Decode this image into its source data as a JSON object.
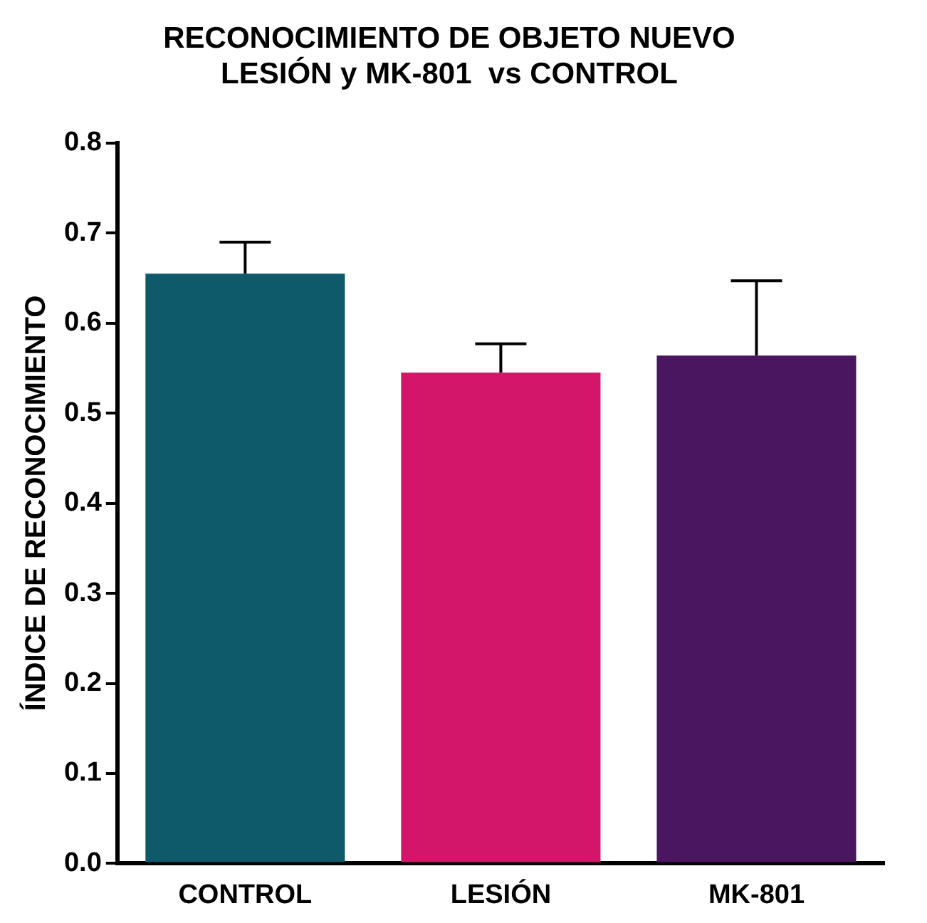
{
  "chart_data": {
    "type": "bar",
    "title": "RECONOCIMIENTO DE OBJETO NUEVO\nLESIÓN y MK-801  vs CONTROL",
    "ylabel": "ÍNDICE DE RECONOCIMIENTO",
    "categories": [
      "CONTROL",
      "LESIÓN",
      "MK-801"
    ],
    "values": [
      0.655,
      0.545,
      0.564
    ],
    "colors": [
      "#0f5a6a",
      "#d4166a",
      "#4a1660"
    ],
    "errors": [
      [
        0.655,
        0.69
      ],
      [
        0.545,
        0.577
      ],
      [
        0.564,
        0.647
      ]
    ],
    "ylim": [
      0,
      0.8
    ],
    "yticks": [
      {
        "value": 0,
        "label": "0.0"
      },
      {
        "value": 0.1,
        "label": "0.1"
      },
      {
        "value": 0.2,
        "label": "0.2"
      },
      {
        "value": 0.3,
        "label": "0.3"
      },
      {
        "value": 0.4,
        "label": "0.4"
      },
      {
        "value": 0.5,
        "label": "0.5"
      },
      {
        "value": 0.6,
        "label": "0.6"
      },
      {
        "value": 0.7,
        "label": "0.7"
      },
      {
        "value": 0.8,
        "label": "0.8"
      }
    ],
    "grid": false
  }
}
